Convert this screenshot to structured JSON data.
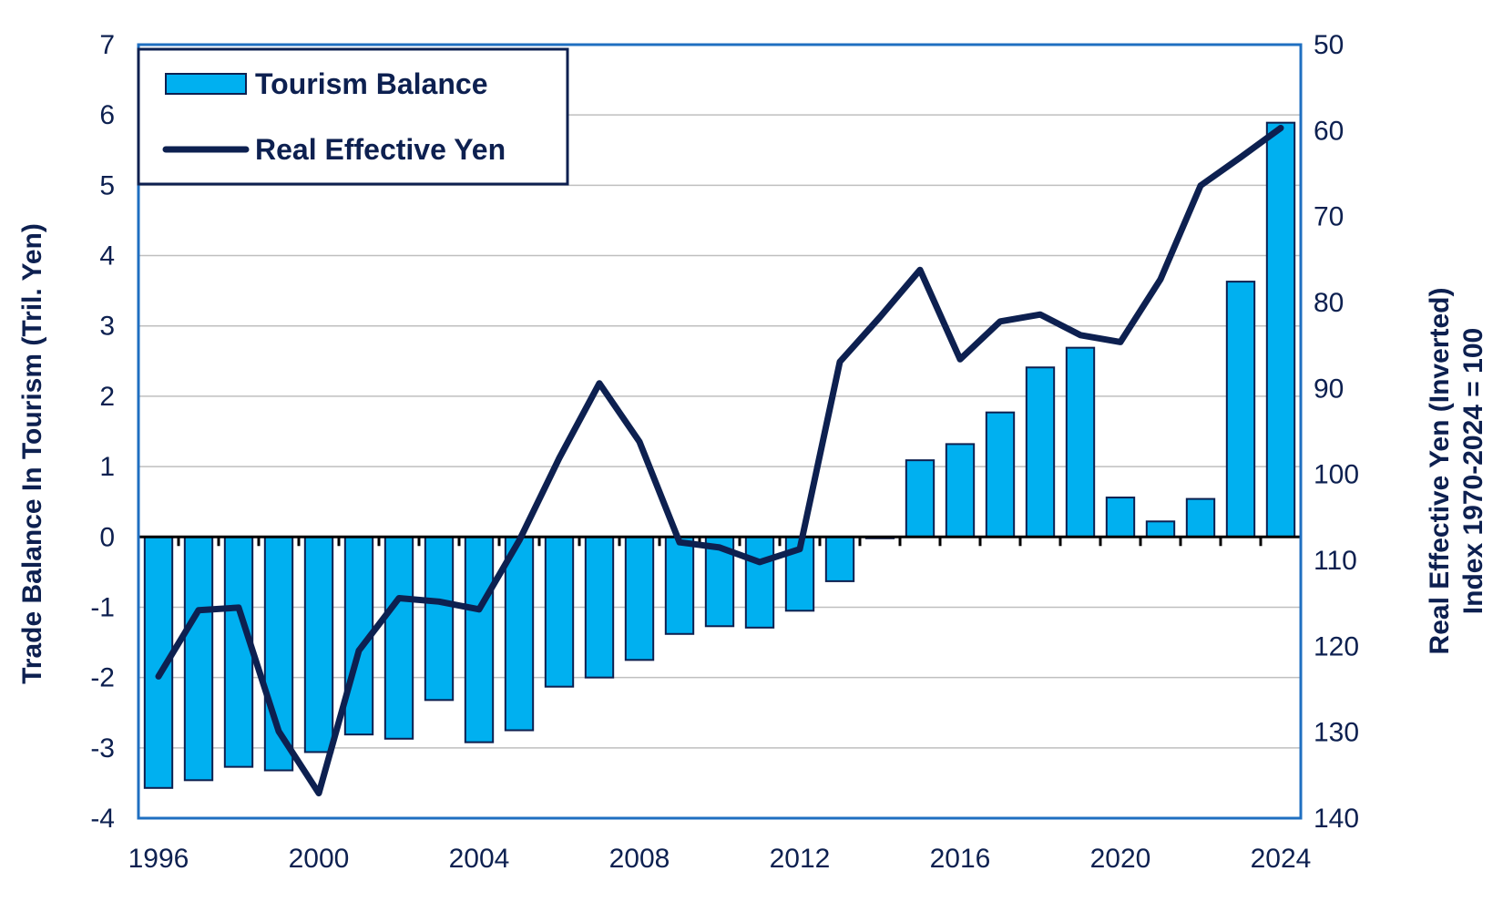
{
  "chart_data": {
    "type": "bar",
    "x": [
      "1996",
      "1997",
      "1998",
      "1999",
      "2000",
      "2001",
      "2002",
      "2003",
      "2004",
      "2005",
      "2006",
      "2007",
      "2008",
      "2009",
      "2010",
      "2011",
      "2012",
      "2013",
      "2014",
      "2015",
      "2016",
      "2017",
      "2018",
      "2019",
      "2020",
      "2021",
      "2022",
      "2023",
      "2024"
    ],
    "x_tick_labels": [
      "1996",
      "2000",
      "2004",
      "2008",
      "2012",
      "2016",
      "2020",
      "2024"
    ],
    "series": [
      {
        "name": "Tourism Balance",
        "type": "bar",
        "axis": "left",
        "color": "#00b0f0",
        "values": [
          -3.57,
          -3.46,
          -3.27,
          -3.32,
          -3.06,
          -2.81,
          -2.87,
          -2.32,
          -2.92,
          -2.75,
          -2.13,
          -2.0,
          -1.75,
          -1.38,
          -1.27,
          -1.29,
          -1.05,
          -0.63,
          -0.02,
          1.09,
          1.32,
          1.77,
          2.41,
          2.69,
          0.56,
          0.22,
          0.54,
          3.63,
          5.89
        ]
      },
      {
        "name": "Real Effective Yen",
        "type": "line",
        "axis": "right",
        "color": "#0d2050",
        "values": [
          123.5,
          115.8,
          115.5,
          129.9,
          137.1,
          120.5,
          114.4,
          114.8,
          115.7,
          107.7,
          98.1,
          89.4,
          96.2,
          107.9,
          108.5,
          110.2,
          108.7,
          86.9,
          81.7,
          76.2,
          86.6,
          82.2,
          81.4,
          83.8,
          84.6,
          77.3,
          66.4,
          63.1,
          59.7
        ]
      }
    ],
    "y_left": {
      "label": "Trade Balance In Tourism (Tril. Yen)",
      "ylim": [
        -4,
        7
      ],
      "ticks": [
        "7",
        "6",
        "5",
        "4",
        "3",
        "2",
        "1",
        "0",
        "-1",
        "-2",
        "-3",
        "-4"
      ]
    },
    "y_right": {
      "label_line1": "Real Effective Yen (Inverted)",
      "label_line2": "Index 1970-2024 = 100",
      "ylim": [
        50,
        140
      ],
      "inverted": true,
      "ticks": [
        "50",
        "60",
        "70",
        "80",
        "90",
        "100",
        "110",
        "120",
        "130",
        "140"
      ]
    },
    "grid": true,
    "legend_position": "top-left"
  }
}
